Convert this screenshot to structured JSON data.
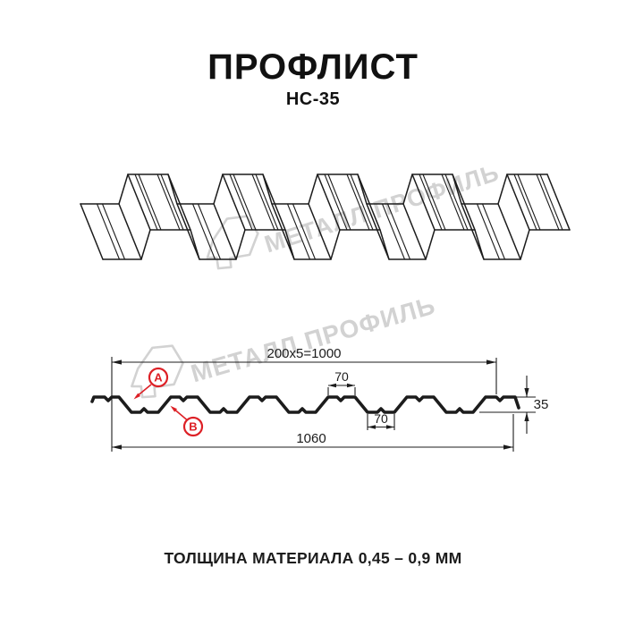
{
  "header": {
    "title": "ПРОФЛИСТ",
    "subtitle": "НС-35"
  },
  "watermark": {
    "text": "МЕТАЛЛ ПРОФИЛЬ"
  },
  "section_drawing": {
    "dim_pitch": "200x5=1000",
    "dim_crest_width": "70",
    "dim_trough_width": "70",
    "dim_overall_width": "1060",
    "dim_height": "35",
    "label_a": "A",
    "label_b": "B"
  },
  "footer": {
    "material_note": "ТОЛЩИНА МАТЕРИАЛА 0,45 – 0,9 ММ"
  },
  "colors": {
    "line": "#1c1c1c",
    "accent_red": "#dd2026",
    "watermark": "#d2d2d2",
    "background": "#ffffff"
  }
}
